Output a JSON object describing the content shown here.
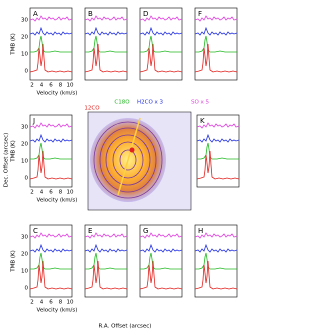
{
  "panels": [
    {
      "label": "A"
    },
    {
      "label": "B"
    },
    {
      "label": "D"
    },
    {
      "label": "F"
    },
    {
      "label": "J"
    },
    {
      "label": "K"
    },
    {
      "label": "C"
    },
    {
      "label": "E"
    },
    {
      "label": "G"
    },
    {
      "label": "H"
    }
  ],
  "y_tick_labels": [
    "30",
    "20",
    "10",
    "0"
  ],
  "x_tick_labels": [
    "2",
    "4",
    "6",
    "8",
    "10"
  ],
  "x_axis_label": "Velocity (km/s)",
  "y_axis_label": "TMB (K)",
  "legend": [
    {
      "name": "12CO",
      "color": "#e0201c"
    },
    {
      "name": "C18O",
      "color": "#22b822"
    },
    {
      "name": "H2CO x 3",
      "color": "#2230e0"
    },
    {
      "name": "SO x 5",
      "color": "#e040e0"
    }
  ],
  "map": {
    "x_label": "R.A. Offset (arcsec)",
    "y_label": "Dec. Offset (arcsec)"
  }
}
